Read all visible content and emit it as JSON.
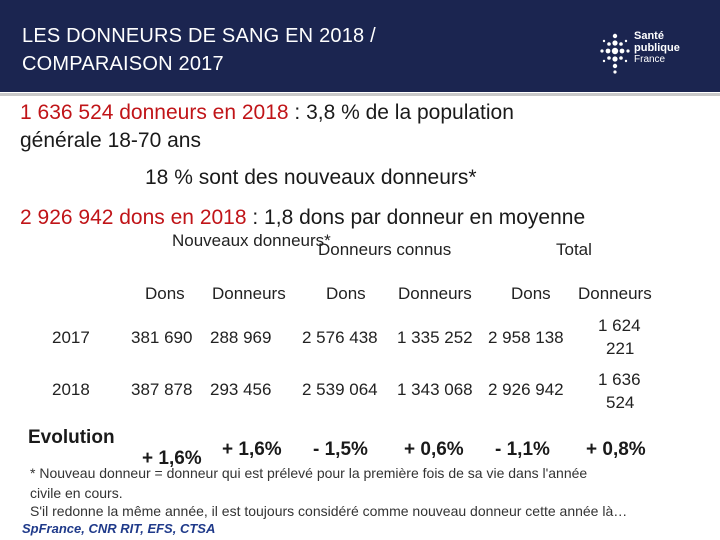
{
  "header": {
    "title_line1": "LES DONNEURS DE SANG EN 2018 /",
    "title_line2": "COMPARAISON 2017",
    "logo": {
      "line1": "Santé",
      "line2": "publique",
      "line3": "France",
      "color": "#ffffff"
    }
  },
  "colors": {
    "header_bg": "#1b2550",
    "accent_red": "#c01418",
    "credit_blue": "#1f3a8a"
  },
  "stats": {
    "donors_value": "1 636 524 donneurs en 2018",
    "donors_rest": " : 3,8 % de la population",
    "donors_line2": "générale 18-70 ans",
    "new_donors": "18 % sont des nouveaux donneurs*",
    "dons_value": "2 926 942 dons en 2018",
    "dons_rest": " : 1,8 dons par donneur en moyenne"
  },
  "table": {
    "groups": [
      "Nouveaux donneurs*",
      "Donneurs connus",
      "Total"
    ],
    "subheaders": [
      "Dons",
      "Donneurs",
      "Dons",
      "Donneurs",
      "Dons",
      "Donneurs"
    ],
    "rows": [
      {
        "year": "2017",
        "values": [
          "381 690",
          "288 969",
          "2 576 438",
          "1 335 252",
          "2 958 138"
        ],
        "last_l1": "1 624",
        "last_l2": "221"
      },
      {
        "year": "2018",
        "values": [
          "387 878",
          "293 456",
          "2 539 064",
          "1 343 068",
          "2 926 942"
        ],
        "last_l1": "1 636",
        "last_l2": "524"
      }
    ],
    "evolution": {
      "label": "Evolution",
      "first": "+ 1,6%",
      "values": [
        "+ 1,6%",
        "- 1,5%",
        "+ 0,6%",
        "- 1,1%",
        "+ 0,8%"
      ]
    }
  },
  "footnotes": {
    "line1": "* Nouveau donneur = donneur qui est prélevé pour la première fois de sa vie dans l'année",
    "line2": "civile en  cours.",
    "line3": "S'il redonne la même année, il est toujours considéré comme nouveau donneur cette année là…",
    "credit": "SpFrance, CNR RIT, EFS, CTSA"
  }
}
